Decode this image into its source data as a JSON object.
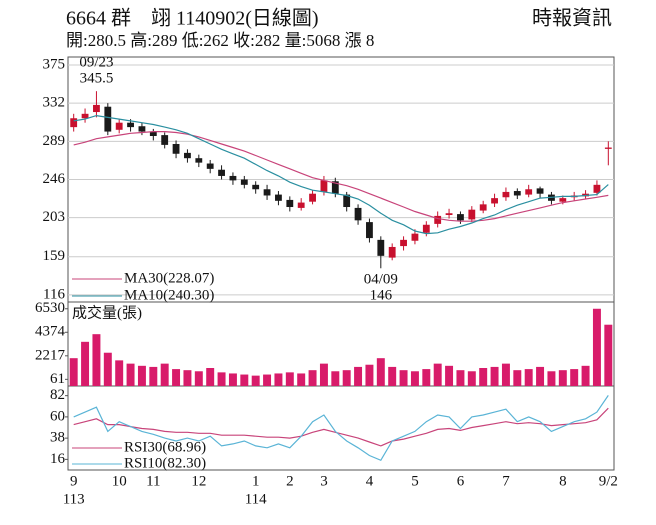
{
  "header": {
    "title": "6664 群　翊 1140902(日線圖)",
    "source": "時報資訊",
    "summary": "開:280.5 高:289 低:262 收:282 量:5068 漲 8"
  },
  "chart_data": [
    {
      "type": "candlestick",
      "open": [
        305,
        315,
        322,
        328,
        302,
        310,
        306,
        300,
        296,
        286,
        276,
        270,
        264,
        257,
        250,
        246,
        240,
        235,
        229,
        223,
        214,
        221,
        232,
        244,
        229,
        214,
        198,
        178,
        158,
        171,
        177,
        186,
        196,
        206,
        207,
        201,
        211,
        219,
        226,
        233,
        229,
        236,
        229,
        221,
        226,
        227,
        231,
        280.5
      ],
      "high": [
        320,
        326,
        345.5,
        332,
        314,
        314,
        310,
        303,
        299,
        290,
        280,
        274,
        268,
        262,
        254,
        250,
        244,
        240,
        233,
        227,
        225,
        234,
        250,
        248,
        232,
        218,
        202,
        182,
        174,
        182,
        190,
        199,
        210,
        213,
        210,
        216,
        222,
        230,
        237,
        236,
        240,
        238,
        232,
        228,
        232,
        234,
        245,
        289
      ],
      "low": [
        300,
        310,
        316,
        296,
        298,
        300,
        296,
        290,
        281,
        270,
        265,
        260,
        253,
        246,
        240,
        236,
        230,
        223,
        217,
        210,
        211,
        218,
        228,
        226,
        210,
        195,
        175,
        146,
        155,
        166,
        173,
        182,
        192,
        202,
        196,
        198,
        208,
        215,
        222,
        224,
        226,
        225,
        218,
        218,
        222,
        224,
        228,
        262
      ],
      "close": [
        315,
        320,
        330,
        300,
        310,
        305,
        300,
        295,
        285,
        275,
        270,
        265,
        258,
        250,
        245,
        240,
        235,
        228,
        222,
        215,
        220,
        230,
        245,
        230,
        215,
        200,
        180,
        160,
        170,
        178,
        185,
        195,
        205,
        208,
        200,
        212,
        218,
        225,
        232,
        228,
        235,
        230,
        222,
        225,
        228,
        230,
        240,
        282
      ],
      "up_color": "#c8102e",
      "down_color": "#1a1a1a",
      "series": [
        {
          "name": "MA30(228.07)",
          "color": "#c8447a",
          "values": [
            285,
            288,
            292,
            294,
            296,
            298,
            299,
            300,
            300,
            299,
            297,
            294,
            290,
            286,
            282,
            278,
            273,
            268,
            263,
            258,
            253,
            248,
            245,
            242,
            239,
            235,
            230,
            225,
            220,
            215,
            210,
            206,
            202,
            200,
            199,
            199,
            200,
            202,
            205,
            208,
            211,
            214,
            217,
            220,
            222,
            224,
            226,
            228.07
          ]
        },
        {
          "name": "MA10(240.30)",
          "color": "#2a8fa0",
          "values": [
            312,
            314,
            318,
            316,
            314,
            312,
            310,
            308,
            305,
            302,
            298,
            292,
            286,
            280,
            275,
            270,
            263,
            256,
            250,
            243,
            238,
            234,
            232,
            230,
            228,
            224,
            217,
            208,
            200,
            195,
            188,
            185,
            186,
            190,
            193,
            197,
            202,
            206,
            212,
            217,
            221,
            225,
            226,
            227,
            227,
            228,
            229,
            240.3
          ]
        }
      ],
      "high_label": {
        "date": "09/23",
        "value": 345.5
      },
      "low_label": {
        "date": "04/09",
        "value": 146
      },
      "ylim": [
        108,
        384
      ],
      "yticks": [
        116,
        159,
        203,
        246,
        289,
        332,
        375
      ],
      "grid": true
    },
    {
      "type": "bar",
      "title": "成交量(張)",
      "color": "#d81b6a",
      "values": [
        2000,
        3500,
        4200,
        2500,
        1800,
        1500,
        1300,
        1200,
        1500,
        1000,
        900,
        800,
        1100,
        700,
        600,
        500,
        400,
        500,
        600,
        700,
        600,
        900,
        1500,
        800,
        900,
        1200,
        1400,
        2000,
        1200,
        900,
        800,
        1000,
        1500,
        1300,
        900,
        800,
        1100,
        1200,
        1500,
        900,
        1000,
        1200,
        800,
        900,
        1000,
        1300,
        6530,
        5068
      ],
      "ylim": [
        -550,
        7150
      ],
      "yticks": [
        61,
        2217,
        4374,
        6530
      ],
      "grid": false
    },
    {
      "type": "line",
      "series": [
        {
          "name": "RSI30(68.96)",
          "color": "#c8447a",
          "values": [
            52,
            55,
            58,
            52,
            52,
            50,
            48,
            47,
            45,
            44,
            44,
            43,
            43,
            41,
            41,
            41,
            40,
            39,
            39,
            38,
            40,
            44,
            47,
            44,
            41,
            38,
            34,
            30,
            35,
            37,
            40,
            43,
            47,
            48,
            46,
            49,
            51,
            53,
            55,
            53,
            54,
            53,
            51,
            52,
            53,
            54,
            57,
            68.96
          ]
        },
        {
          "name": "RSI10(82.30)",
          "color": "#5ab4d6",
          "values": [
            60,
            65,
            70,
            45,
            55,
            50,
            45,
            42,
            38,
            35,
            38,
            35,
            40,
            30,
            32,
            35,
            30,
            28,
            32,
            28,
            40,
            55,
            62,
            45,
            35,
            28,
            20,
            15,
            35,
            40,
            45,
            55,
            62,
            60,
            48,
            60,
            62,
            65,
            68,
            55,
            60,
            55,
            45,
            50,
            55,
            58,
            65,
            82.3
          ]
        }
      ],
      "categories": [
        "9",
        null,
        null,
        null,
        "10",
        null,
        null,
        "11",
        null,
        null,
        null,
        "12",
        null,
        null,
        null,
        null,
        "1",
        null,
        null,
        "2",
        null,
        null,
        "3",
        null,
        null,
        null,
        "4",
        null,
        null,
        null,
        "5",
        null,
        null,
        null,
        "6",
        null,
        null,
        null,
        "7",
        null,
        null,
        null,
        null,
        "8",
        null,
        null,
        null,
        "9/2"
      ],
      "year_labels": [
        "113",
        null,
        null,
        null,
        null,
        null,
        null,
        null,
        null,
        null,
        null,
        null,
        null,
        null,
        null,
        null,
        "114",
        null,
        null,
        null,
        null,
        null,
        null,
        null,
        null,
        null,
        null,
        null,
        null,
        null,
        null,
        null,
        null,
        null,
        null,
        null,
        null,
        null,
        null,
        null,
        null,
        null,
        null,
        null,
        null,
        null,
        null,
        null
      ],
      "ylim": [
        5,
        92
      ],
      "yticks": [
        16,
        38,
        60,
        82
      ],
      "grid": false
    }
  ]
}
